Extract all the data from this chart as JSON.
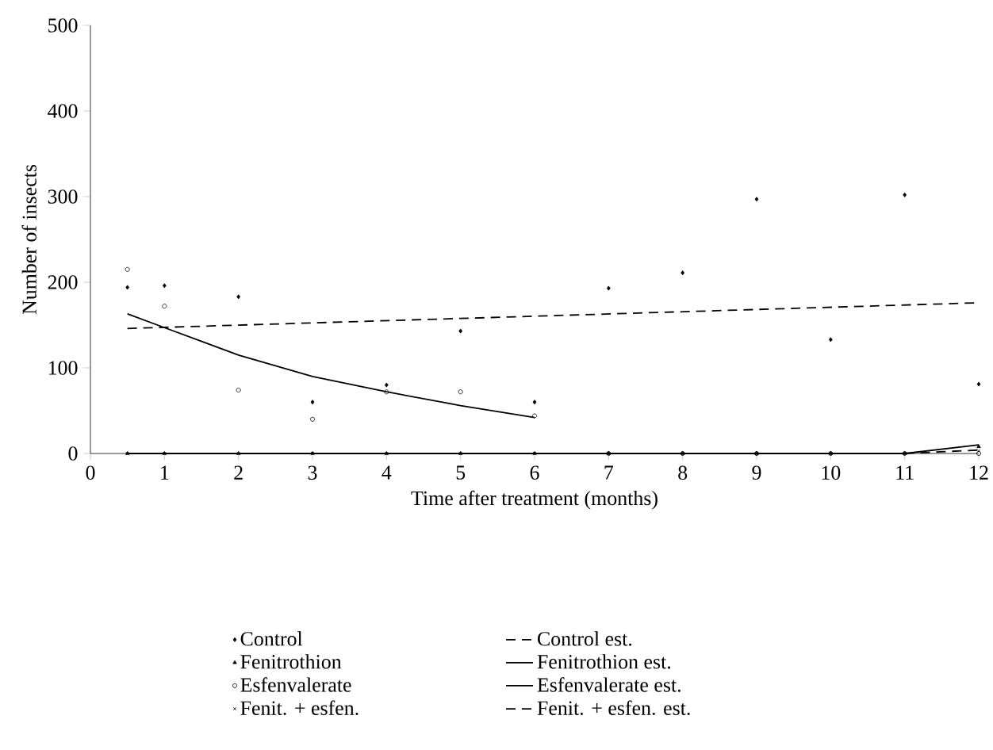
{
  "chart_data": {
    "type": "scatter",
    "xlabel": "Time after treatment (months)",
    "ylabel": "Number of insects",
    "x": [
      0.5,
      1,
      2,
      3,
      4,
      5,
      6,
      7,
      8,
      9,
      10,
      11,
      12
    ],
    "series": [
      {
        "name": "Control",
        "color": "#000000",
        "marker": "diamond",
        "values": [
          194,
          196,
          183,
          60,
          80,
          143,
          60,
          193,
          211,
          297,
          133,
          302,
          81
        ]
      },
      {
        "name": "Fenitrothion",
        "color": "#000000",
        "marker": "triangle",
        "values": [
          0,
          0,
          0,
          0,
          0,
          0,
          0,
          0,
          0,
          0,
          0,
          0,
          8
        ]
      },
      {
        "name": "Esfenvalerate",
        "color": "#000000",
        "marker": "circle",
        "values": [
          215,
          172,
          74,
          40,
          72,
          72,
          44,
          0,
          0,
          0,
          0,
          0,
          0
        ]
      },
      {
        "name": "Fenit. + esfen.",
        "color": "#000000",
        "marker": "cross",
        "values": [
          0,
          0,
          0,
          0,
          0,
          0,
          0,
          0,
          0,
          0,
          0,
          0,
          3
        ]
      },
      {
        "name": "Control est.",
        "type": "line",
        "line_style": "dashed",
        "color": "#000000",
        "x": [
          0.5,
          12
        ],
        "values": [
          146,
          176
        ]
      },
      {
        "name": "Fenitrothion est.",
        "type": "line",
        "line_style": "solid",
        "color": "#000000",
        "x": [
          0.5,
          11,
          12
        ],
        "values": [
          0,
          0,
          10
        ]
      },
      {
        "name": "Esfenvalerate est.",
        "type": "line",
        "line_style": "solid",
        "color": "#000000",
        "x": [
          0.5,
          1,
          2,
          3,
          4,
          5,
          6
        ],
        "values": [
          163,
          147,
          115,
          90,
          72,
          56,
          42
        ]
      },
      {
        "name": "Fenit. + esfen. est.",
        "type": "line",
        "line_style": "dashed",
        "color": "#000000",
        "x": [
          11,
          12
        ],
        "values": [
          0,
          4
        ]
      }
    ],
    "xlim": [
      0,
      12
    ],
    "xticks": [
      0,
      1,
      2,
      3,
      4,
      5,
      6,
      7,
      8,
      9,
      10,
      11,
      12
    ],
    "ylim": [
      0,
      500
    ],
    "yticks": [
      0,
      100,
      200,
      300,
      400,
      500
    ],
    "grid": false,
    "legend": "bottom"
  }
}
